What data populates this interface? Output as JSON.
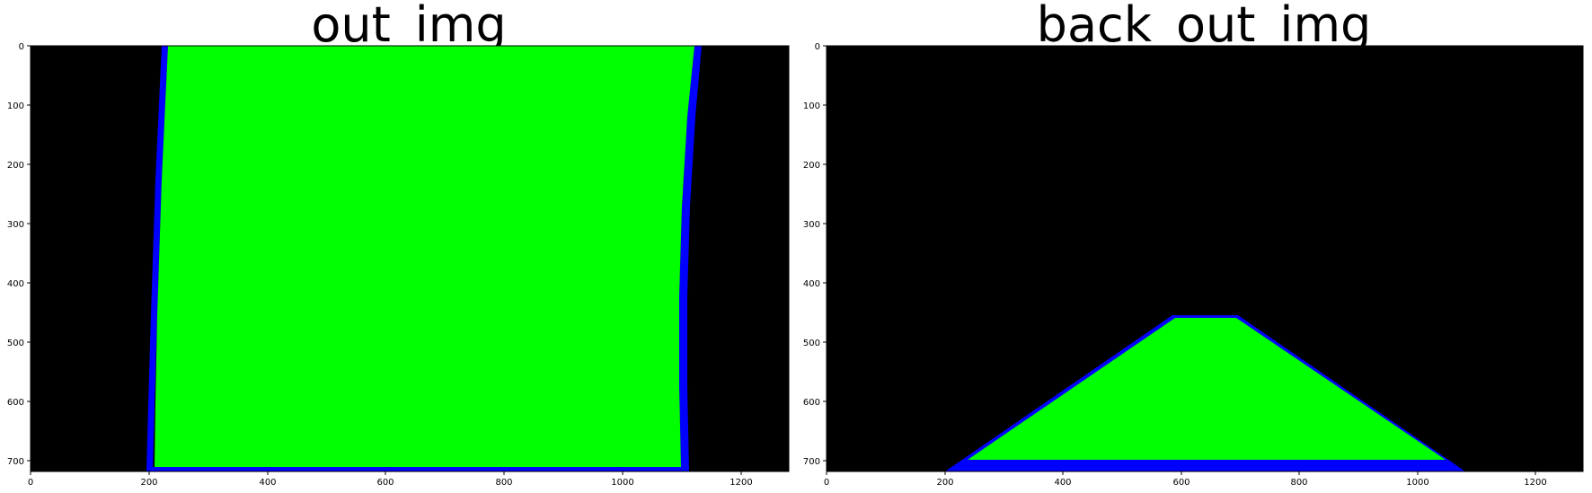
{
  "panels": [
    {
      "title": "out_img",
      "x_ticks": [
        "0",
        "200",
        "400",
        "600",
        "800",
        "1000",
        "1200"
      ],
      "y_ticks": [
        "0",
        "100",
        "200",
        "300",
        "400",
        "500",
        "600",
        "700"
      ],
      "image_content": "warped lane area (green) bounded by blue lane lines on black"
    },
    {
      "title": "back_out_img",
      "x_ticks": [
        "0",
        "200",
        "400",
        "600",
        "800",
        "1000",
        "1200"
      ],
      "y_ticks": [
        "0",
        "100",
        "200",
        "300",
        "400",
        "500",
        "600",
        "700"
      ],
      "image_content": "unwarped lane trapezoid (green) with blue borders on black"
    }
  ],
  "colors": {
    "background": "#000000",
    "lane_fill": "#00ff00",
    "lane_line": "#0000ff",
    "figure_bg": "#ffffff"
  }
}
